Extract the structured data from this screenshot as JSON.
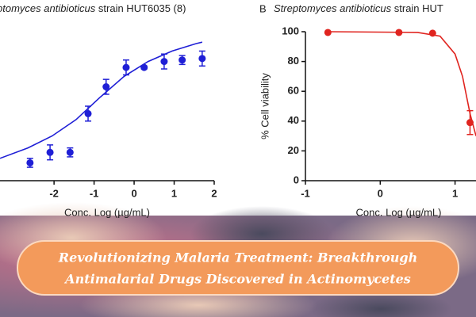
{
  "chart_data": [
    {
      "type": "scatter",
      "title_italic": "ptomyces antibioticus",
      "title_rest": "strain HUT6035 (8)",
      "xlabel": "Conc. Log (µg/mL)",
      "color": "#1f1fd6",
      "xlim": [
        -3.35,
        2
      ],
      "ylim": [
        0,
        100
      ],
      "xticks": [
        -2,
        -1,
        0,
        1,
        2
      ],
      "x": [
        -2.6,
        -2.1,
        -1.6,
        -1.15,
        -0.7,
        -0.2,
        0.25,
        0.75,
        1.2,
        1.7
      ],
      "values": [
        12,
        19,
        19,
        45,
        63,
        76,
        76,
        80,
        81,
        82
      ],
      "errors": [
        3,
        5,
        3,
        5,
        5,
        5,
        1,
        5,
        3,
        5
      ],
      "fit": {
        "x": [
          -3.35,
          -2.65,
          -2.05,
          -1.45,
          -0.85,
          -0.25,
          0.35,
          0.95,
          1.55,
          1.7
        ],
        "y": [
          15,
          22,
          30,
          41,
          56,
          70,
          80,
          87,
          92,
          93
        ]
      }
    },
    {
      "type": "scatter",
      "panel": "B",
      "title_italic": "Streptomyces antibioticus",
      "title_rest": "strain HUT",
      "xlabel": "Conc. Log (µg/mL)",
      "ylabel": "% Cell viability",
      "color": "#e0241f",
      "xlim": [
        -1,
        1.28
      ],
      "ylim": [
        0,
        100
      ],
      "xticks": [
        -1,
        0,
        1
      ],
      "yticks": [
        0,
        20,
        40,
        60,
        80,
        100
      ],
      "x": [
        -0.7,
        0.25,
        0.7,
        1.2
      ],
      "values": [
        99.5,
        99.5,
        99,
        39
      ],
      "errors": [
        0,
        0,
        0,
        8
      ],
      "fit": {
        "x": [
          -0.7,
          0.5,
          0.8,
          1.0,
          1.1,
          1.2,
          1.28
        ],
        "y": [
          100,
          99.5,
          97,
          85,
          70,
          45,
          30
        ]
      }
    }
  ],
  "banner": {
    "lines": [
      "Revolutionizing Malaria Treatment: Breakthrough",
      "Antimalarial Drugs Discovered in Actinomycetes"
    ]
  }
}
